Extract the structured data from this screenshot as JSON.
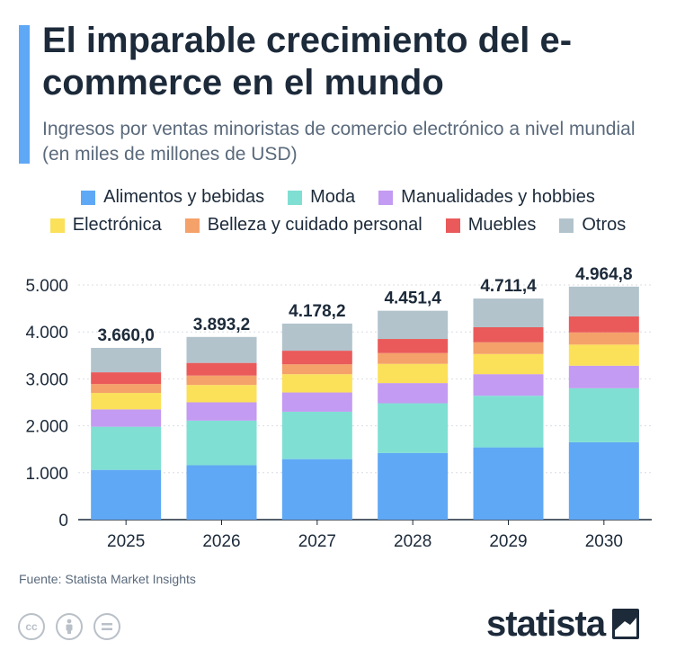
{
  "title": "El imparable crecimiento del e-commerce en el mundo",
  "subtitle": "Ingresos por ventas minoristas de comercio electrónico a nivel mundial (en miles de millones de USD)",
  "source": "Fuente: Statista Market Insights",
  "logo": "statista",
  "chart_data": {
    "type": "bar",
    "stacked": true,
    "title": "El imparable crecimiento del e-commerce en el mundo",
    "xlabel": "",
    "ylabel": "",
    "ylim": [
      0,
      5000
    ],
    "yticks": [
      0,
      1000,
      2000,
      3000,
      4000,
      5000
    ],
    "ytick_labels": [
      "0",
      "1.000",
      "2.000",
      "3.000",
      "4.000",
      "5.000"
    ],
    "grid": true,
    "legend_position": "top",
    "categories": [
      "2025",
      "2026",
      "2027",
      "2028",
      "2029",
      "2030"
    ],
    "totals": [
      3660.0,
      3893.2,
      4178.2,
      4451.4,
      4711.4,
      4964.8
    ],
    "total_labels": [
      "3.660,0",
      "3.893,2",
      "4.178,2",
      "4.451,4",
      "4.711,4",
      "4.964,8"
    ],
    "series": [
      {
        "name": "Alimentos y bebidas",
        "color": "#5fa8f5",
        "values": [
          1060,
          1160,
          1290,
          1420,
          1540,
          1650
        ]
      },
      {
        "name": "Moda",
        "color": "#7fdfd3",
        "values": [
          920,
          950,
          1010,
          1060,
          1100,
          1150
        ]
      },
      {
        "name": "Manualidades y hobbies",
        "color": "#c39bf2",
        "values": [
          370,
          390,
          410,
          430,
          460,
          480
        ]
      },
      {
        "name": "Electrónica",
        "color": "#fbe05a",
        "values": [
          350,
          370,
          390,
          410,
          430,
          450
        ]
      },
      {
        "name": "Belleza y cuidado personal",
        "color": "#f5a16a",
        "values": [
          190,
          200,
          210,
          230,
          250,
          260
        ]
      },
      {
        "name": "Muebles",
        "color": "#ea5a5a",
        "values": [
          250,
          270,
          290,
          300,
          320,
          340
        ]
      },
      {
        "name": "Otros",
        "color": "#b2c3cc",
        "values": [
          520,
          553.2,
          578.2,
          601.4,
          611.4,
          634.8
        ]
      }
    ]
  }
}
